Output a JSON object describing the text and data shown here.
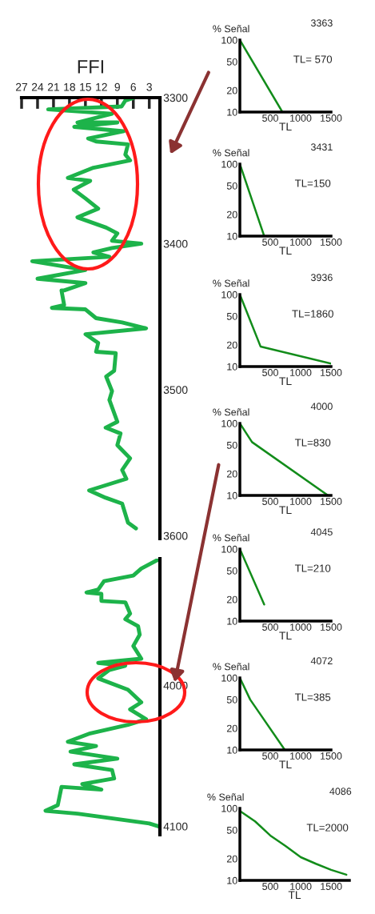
{
  "chart_data": [
    {
      "type": "line",
      "title": "FFI",
      "xlim": [
        27,
        1
      ],
      "xticks": [
        27,
        24,
        21,
        18,
        15,
        12,
        9,
        6,
        3
      ],
      "ylim": [
        3602,
        3300
      ],
      "yticks": [
        3300,
        3400,
        3500,
        3600
      ],
      "line_style": "solid",
      "series": [
        {
          "color": "#1db34a",
          "x": [
            5.8,
            7.5,
            8.2,
            22.0,
            10.0,
            16.5,
            9.0,
            17.1,
            7.8,
            14.5,
            13.0,
            7.0,
            7.5,
            6.6,
            13.5,
            18.3,
            14.1,
            17.2,
            15.0,
            12.6,
            16.5,
            11.1,
            9.0,
            10.0,
            4.5,
            10.0,
            13.5,
            10.5,
            25.0,
            15.0,
            24.0,
            15.0,
            19.0,
            19.5,
            19.0,
            21.3,
            15.0,
            13.0,
            8.1,
            3.6,
            15.0,
            12.6,
            13.0,
            9.3,
            9.6,
            11.1,
            10.0,
            10.5,
            9.0,
            11.2,
            8.4,
            9.0,
            6.6,
            8.1,
            7.3,
            14.3,
            11.2,
            8.1,
            7.0,
            5.5
          ],
          "values": [
            3300,
            3302,
            3306,
            3308,
            3311,
            3317,
            3317,
            3320,
            3323,
            3328,
            3330,
            3332,
            3339,
            3343,
            3348,
            3355,
            3357,
            3363,
            3369,
            3376,
            3382,
            3389,
            3393,
            3398,
            3400,
            3403,
            3406,
            3409,
            3412,
            3418,
            3424,
            3427,
            3432,
            3432,
            3442,
            3444,
            3445,
            3451,
            3454,
            3458,
            3462,
            3468,
            3474,
            3475,
            3487,
            3491,
            3501,
            3507,
            3522,
            3526,
            3530,
            3538,
            3547,
            3555,
            3561,
            3569,
            3574,
            3578,
            3591,
            3595
          ]
        }
      ]
    },
    {
      "type": "line",
      "xlim": [
        27,
        1
      ],
      "ylim": [
        4106,
        3910
      ],
      "yticks": [
        4000,
        4100
      ],
      "tick_labels": "y",
      "line_style": "solid",
      "series": [
        {
          "color": "#1db34a",
          "x": [
            1.5,
            4.5,
            6.0,
            11.5,
            12.6,
            14.8,
            12.0,
            12.0,
            7.5,
            6.6,
            7.5,
            5.1,
            4.8,
            6.0,
            4.5,
            12.6,
            7.5,
            10.5,
            12.6,
            7.0,
            4.5,
            6.6,
            3.6,
            7.0,
            14.1,
            18.3,
            13.0,
            17.8,
            9.0,
            17.1,
            10.0,
            9.6,
            15.6,
            12.0,
            19.5,
            20.2,
            22.5,
            16.5,
            3.0,
            1.3
          ],
          "values": [
            3911,
            3917,
            3922,
            3926,
            3932,
            3934,
            3935,
            3940,
            3941,
            3949,
            3953,
            3958,
            3964,
            3972,
            3981,
            3984,
            3986,
            3989,
            3995,
            4003,
            4012,
            4017,
            4024,
            4028,
            4034,
            4040,
            4043,
            4047,
            4052,
            4056,
            4060,
            4066,
            4070,
            4074,
            4072,
            4085,
            4089,
            4091,
            4098,
            4100
          ]
        }
      ]
    },
    {
      "type": "line",
      "title": "3363",
      "ylabel": "% Señal",
      "xlabel": "TL",
      "annotations": [
        "TL= 570"
      ],
      "log": "y",
      "xlim": [
        0,
        1500
      ],
      "xticks": [
        500,
        1000,
        1500
      ],
      "ylim": [
        10,
        100
      ],
      "yticks": [
        10,
        20,
        50,
        100
      ],
      "line_style": "solid",
      "series": [
        {
          "color": "#128c1a",
          "x": [
            0,
            700
          ],
          "values": [
            100,
            10
          ]
        }
      ]
    },
    {
      "type": "line",
      "title": "3431",
      "ylabel": "% Señal",
      "xlabel": "TL",
      "annotations": [
        "TL=150"
      ],
      "log": "y",
      "xlim": [
        0,
        1500
      ],
      "xticks": [
        500,
        1000,
        1500
      ],
      "ylim": [
        10,
        100
      ],
      "yticks": [
        10,
        20,
        50,
        100
      ],
      "line_style": "solid",
      "series": [
        {
          "color": "#128c1a",
          "x": [
            0,
            400
          ],
          "values": [
            100,
            10
          ]
        }
      ]
    },
    {
      "type": "line",
      "title": "3936",
      "ylabel": "% Señal",
      "xlabel": "TL",
      "annotations": [
        "TL=1860"
      ],
      "log": "y",
      "xlim": [
        0,
        1500
      ],
      "xticks": [
        500,
        1000,
        1500
      ],
      "ylim": [
        10,
        100
      ],
      "yticks": [
        10,
        20,
        50,
        100
      ],
      "line_style": "solid",
      "series": [
        {
          "color": "#128c1a",
          "x": [
            0,
            340,
            1500
          ],
          "values": [
            100,
            19,
            11
          ]
        }
      ]
    },
    {
      "type": "line",
      "title": "4000",
      "ylabel": "% Señal",
      "xlabel": "TL",
      "annotations": [
        "TL=830"
      ],
      "log": "y",
      "xlim": [
        0,
        1500
      ],
      "xticks": [
        500,
        1000,
        1500
      ],
      "ylim": [
        10,
        100
      ],
      "yticks": [
        10,
        20,
        50,
        100
      ],
      "line_style": "solid",
      "series": [
        {
          "color": "#128c1a",
          "x": [
            0,
            200,
            1450
          ],
          "values": [
            100,
            55,
            10
          ]
        }
      ]
    },
    {
      "type": "line",
      "title": "4045",
      "ylabel": "% Señal",
      "xlabel": "TL",
      "annotations": [
        "TL=210"
      ],
      "log": "y",
      "xlim": [
        0,
        1500
      ],
      "xticks": [
        500,
        1000,
        1500
      ],
      "ylim": [
        10,
        100
      ],
      "yticks": [
        10,
        20,
        50,
        100
      ],
      "line_style": "solid",
      "series": [
        {
          "color": "#128c1a",
          "x": [
            0,
            400
          ],
          "values": [
            100,
            17
          ]
        }
      ]
    },
    {
      "type": "line",
      "title": "4072",
      "ylabel": "% Señal",
      "xlabel": "TL",
      "annotations": [
        "TL=385"
      ],
      "log": "y",
      "xlim": [
        0,
        1500
      ],
      "xticks": [
        500,
        1000,
        1500
      ],
      "ylim": [
        10,
        100
      ],
      "yticks": [
        10,
        20,
        50,
        100
      ],
      "line_style": "solid",
      "series": [
        {
          "color": "#128c1a",
          "x": [
            0,
            170,
            740
          ],
          "values": [
            100,
            50,
            10
          ]
        }
      ]
    },
    {
      "type": "line",
      "title": "4086",
      "ylabel": "% Señal",
      "xlabel": "TL",
      "annotations": [
        "TL=2000"
      ],
      "log": "y",
      "xlim": [
        0,
        1800
      ],
      "xticks": [
        500,
        1000,
        1500
      ],
      "ylim": [
        10,
        100
      ],
      "yticks": [
        10,
        20,
        50,
        100
      ],
      "line_style": "solid",
      "series": [
        {
          "color": "#128c1a",
          "x": [
            0,
            250,
            500,
            750,
            1000,
            1250,
            1500,
            1750
          ],
          "values": [
            92,
            66,
            42,
            30,
            21,
            17,
            14,
            12
          ]
        }
      ]
    }
  ]
}
